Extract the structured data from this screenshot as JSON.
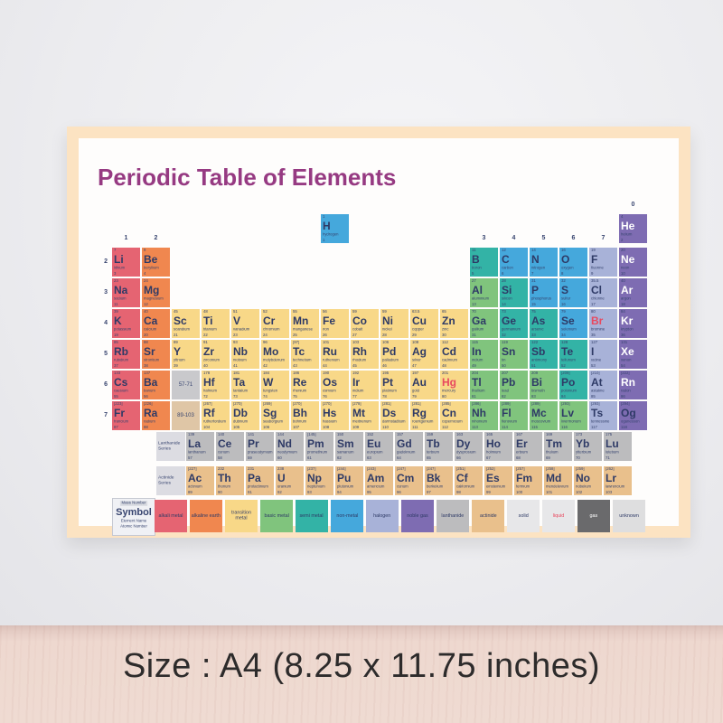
{
  "poster": {
    "title": "Periodic Table of Elements",
    "caption": "Size : A4 (8.25 x 11.75 inches)"
  },
  "colors": {
    "alkali": "#e56472",
    "alkaline": "#f0874f",
    "transition": "#f8d888",
    "basic": "#80c47d",
    "semi": "#33b3a6",
    "nonmetal": "#45a8dc",
    "halogen": "#a8b2d8",
    "noble": "#7e6cb2",
    "lanthanide": "#bcbcbe",
    "actinide": "#e9c08c",
    "solid": "#e7e7e9",
    "liquid": "#e7e7e9",
    "gas": "#6a6a6c",
    "unknown": "#dededf",
    "placeholder_lan": "#c9c9cc",
    "placeholder_act": "#dfc6a6",
    "text_navy": "#2e3a66",
    "text_red": "#e8495f",
    "text_white": "#ffffff",
    "title_purple": "#963a82",
    "poster_border": "#fce3c2"
  },
  "table": {
    "group_headers": [
      {
        "label": "1",
        "col": 1
      },
      {
        "label": "2",
        "col": 2
      },
      {
        "label": "3",
        "col": 13
      },
      {
        "label": "4",
        "col": 14
      },
      {
        "label": "5",
        "col": 15
      },
      {
        "label": "6",
        "col": 16
      },
      {
        "label": "7",
        "col": 17
      },
      {
        "label": "0",
        "col": 18
      }
    ],
    "period_labels": [
      {
        "label": "2",
        "row": 2
      },
      {
        "label": "3",
        "row": 3
      },
      {
        "label": "4",
        "row": 4
      },
      {
        "label": "5",
        "row": 5
      },
      {
        "label": "6",
        "row": 6
      },
      {
        "label": "7",
        "row": 7
      }
    ],
    "placeholders": [
      {
        "label": "57-71",
        "row": 6,
        "col": 3,
        "color_key": "placeholder_lan"
      },
      {
        "label": "89-103",
        "row": 7,
        "col": 3,
        "color_key": "placeholder_act"
      }
    ],
    "series_labels": [
      {
        "label": "Lanthanide Series",
        "series": "lan"
      },
      {
        "label": "Actinide Series",
        "series": "act"
      }
    ],
    "element_fields": [
      "symbol",
      "name",
      "mass",
      "number",
      "period",
      "col",
      "category",
      "state"
    ],
    "elements": [
      [
        "H",
        "hydrogen",
        "1",
        1,
        1,
        8,
        "nonmetal",
        ""
      ],
      [
        "He",
        "helium",
        "4",
        2,
        1,
        18,
        "noble",
        "gas"
      ],
      [
        "Li",
        "lithium",
        "7",
        3,
        2,
        1,
        "alkali",
        ""
      ],
      [
        "Be",
        "beryllium",
        "9",
        4,
        2,
        2,
        "alkaline",
        ""
      ],
      [
        "B",
        "boron",
        "11",
        5,
        2,
        13,
        "semi",
        ""
      ],
      [
        "C",
        "carbon",
        "12",
        6,
        2,
        14,
        "nonmetal",
        ""
      ],
      [
        "N",
        "nitrogen",
        "14",
        7,
        2,
        15,
        "nonmetal",
        ""
      ],
      [
        "O",
        "oxygen",
        "16",
        8,
        2,
        16,
        "nonmetal",
        ""
      ],
      [
        "F",
        "fluorine",
        "19",
        9,
        2,
        17,
        "halogen",
        ""
      ],
      [
        "Ne",
        "neon",
        "20",
        10,
        2,
        18,
        "noble",
        "gas"
      ],
      [
        "Na",
        "sodium",
        "23",
        11,
        3,
        1,
        "alkali",
        ""
      ],
      [
        "Mg",
        "magnesium",
        "24",
        12,
        3,
        2,
        "alkaline",
        ""
      ],
      [
        "Al",
        "aluminium",
        "27",
        13,
        3,
        13,
        "basic",
        ""
      ],
      [
        "Si",
        "silicon",
        "28",
        14,
        3,
        14,
        "semi",
        ""
      ],
      [
        "P",
        "phosphorus",
        "31",
        15,
        3,
        15,
        "nonmetal",
        ""
      ],
      [
        "S",
        "sulfur",
        "32",
        16,
        3,
        16,
        "nonmetal",
        ""
      ],
      [
        "Cl",
        "chlorine",
        "35.5",
        17,
        3,
        17,
        "halogen",
        ""
      ],
      [
        "Ar",
        "argon",
        "40",
        18,
        3,
        18,
        "noble",
        "gas"
      ],
      [
        "K",
        "potassium",
        "39",
        19,
        4,
        1,
        "alkali",
        ""
      ],
      [
        "Ca",
        "calcium",
        "40",
        20,
        4,
        2,
        "alkaline",
        ""
      ],
      [
        "Sc",
        "scandium",
        "45",
        21,
        4,
        3,
        "transition",
        ""
      ],
      [
        "Ti",
        "titanium",
        "48",
        22,
        4,
        4,
        "transition",
        ""
      ],
      [
        "V",
        "vanadium",
        "51",
        23,
        4,
        5,
        "transition",
        ""
      ],
      [
        "Cr",
        "chromium",
        "52",
        24,
        4,
        6,
        "transition",
        ""
      ],
      [
        "Mn",
        "manganese",
        "55",
        25,
        4,
        7,
        "transition",
        ""
      ],
      [
        "Fe",
        "iron",
        "56",
        26,
        4,
        8,
        "transition",
        ""
      ],
      [
        "Co",
        "cobalt",
        "59",
        27,
        4,
        9,
        "transition",
        ""
      ],
      [
        "Ni",
        "nickel",
        "59",
        28,
        4,
        10,
        "transition",
        ""
      ],
      [
        "Cu",
        "copper",
        "63.5",
        29,
        4,
        11,
        "transition",
        ""
      ],
      [
        "Zn",
        "zinc",
        "65",
        30,
        4,
        12,
        "transition",
        ""
      ],
      [
        "Ga",
        "gallium",
        "70",
        31,
        4,
        13,
        "basic",
        ""
      ],
      [
        "Ge",
        "germanium",
        "73",
        32,
        4,
        14,
        "semi",
        ""
      ],
      [
        "As",
        "arsenic",
        "75",
        33,
        4,
        15,
        "semi",
        ""
      ],
      [
        "Se",
        "selenium",
        "79",
        34,
        4,
        16,
        "nonmetal",
        ""
      ],
      [
        "Br",
        "bromine",
        "80",
        35,
        4,
        17,
        "halogen",
        "liquid"
      ],
      [
        "Kr",
        "krypton",
        "84",
        36,
        4,
        18,
        "noble",
        "gas"
      ],
      [
        "Rb",
        "rubidium",
        "85",
        37,
        5,
        1,
        "alkali",
        ""
      ],
      [
        "Sr",
        "strontium",
        "88",
        38,
        5,
        2,
        "alkaline",
        ""
      ],
      [
        "Y",
        "yttrium",
        "89",
        39,
        5,
        3,
        "transition",
        ""
      ],
      [
        "Zr",
        "zirconium",
        "91",
        40,
        5,
        4,
        "transition",
        ""
      ],
      [
        "Nb",
        "niobium",
        "93",
        41,
        5,
        5,
        "transition",
        ""
      ],
      [
        "Mo",
        "molybdenum",
        "96",
        42,
        5,
        6,
        "transition",
        ""
      ],
      [
        "Tc",
        "technetium",
        "[97]",
        43,
        5,
        7,
        "transition",
        ""
      ],
      [
        "Ru",
        "ruthenium",
        "101",
        44,
        5,
        8,
        "transition",
        ""
      ],
      [
        "Rh",
        "rhodium",
        "103",
        45,
        5,
        9,
        "transition",
        ""
      ],
      [
        "Pd",
        "palladium",
        "106",
        46,
        5,
        10,
        "transition",
        ""
      ],
      [
        "Ag",
        "silver",
        "108",
        47,
        5,
        11,
        "transition",
        ""
      ],
      [
        "Cd",
        "cadmium",
        "112",
        48,
        5,
        12,
        "transition",
        ""
      ],
      [
        "In",
        "indium",
        "115",
        49,
        5,
        13,
        "basic",
        ""
      ],
      [
        "Sn",
        "tin",
        "119",
        50,
        5,
        14,
        "basic",
        ""
      ],
      [
        "Sb",
        "antimony",
        "122",
        51,
        5,
        15,
        "semi",
        ""
      ],
      [
        "Te",
        "tellurium",
        "128",
        52,
        5,
        16,
        "semi",
        ""
      ],
      [
        "I",
        "iodine",
        "127",
        53,
        5,
        17,
        "halogen",
        ""
      ],
      [
        "Xe",
        "xenon",
        "131",
        54,
        5,
        18,
        "noble",
        "gas"
      ],
      [
        "Cs",
        "caesium",
        "133",
        55,
        6,
        1,
        "alkali",
        ""
      ],
      [
        "Ba",
        "barium",
        "137",
        56,
        6,
        2,
        "alkaline",
        ""
      ],
      [
        "Hf",
        "hafnium",
        "178",
        72,
        6,
        4,
        "transition",
        ""
      ],
      [
        "Ta",
        "tantalum",
        "181",
        73,
        6,
        5,
        "transition",
        ""
      ],
      [
        "W",
        "tungsten",
        "184",
        74,
        6,
        6,
        "transition",
        ""
      ],
      [
        "Re",
        "rhenium",
        "186",
        75,
        6,
        7,
        "transition",
        ""
      ],
      [
        "Os",
        "osmium",
        "190",
        76,
        6,
        8,
        "transition",
        ""
      ],
      [
        "Ir",
        "iridium",
        "192",
        77,
        6,
        9,
        "transition",
        ""
      ],
      [
        "Pt",
        "platinum",
        "195",
        78,
        6,
        10,
        "transition",
        ""
      ],
      [
        "Au",
        "gold",
        "197",
        79,
        6,
        11,
        "transition",
        ""
      ],
      [
        "Hg",
        "mercury",
        "201",
        80,
        6,
        12,
        "transition",
        "liquid"
      ],
      [
        "Tl",
        "thallium",
        "204",
        81,
        6,
        13,
        "basic",
        ""
      ],
      [
        "Pb",
        "lead",
        "207",
        82,
        6,
        14,
        "basic",
        ""
      ],
      [
        "Bi",
        "bismuth",
        "209",
        83,
        6,
        15,
        "basic",
        ""
      ],
      [
        "Po",
        "polonium",
        "[209]",
        84,
        6,
        16,
        "semi",
        ""
      ],
      [
        "At",
        "astatine",
        "[210]",
        85,
        6,
        17,
        "halogen",
        ""
      ],
      [
        "Rn",
        "radon",
        "[222]",
        86,
        6,
        18,
        "noble",
        "gas"
      ],
      [
        "Fr",
        "francium",
        "[223]",
        87,
        7,
        1,
        "alkali",
        ""
      ],
      [
        "Ra",
        "radium",
        "[226]",
        88,
        7,
        2,
        "alkaline",
        ""
      ],
      [
        "Rf",
        "rutherfordium",
        "[267]",
        104,
        7,
        4,
        "transition",
        ""
      ],
      [
        "Db",
        "dubnium",
        "[270]",
        105,
        7,
        5,
        "transition",
        ""
      ],
      [
        "Sg",
        "seaborgium",
        "[269]",
        106,
        7,
        6,
        "transition",
        ""
      ],
      [
        "Bh",
        "bohrium",
        "[270]",
        107,
        7,
        7,
        "transition",
        ""
      ],
      [
        "Hs",
        "hassium",
        "[270]",
        108,
        7,
        8,
        "transition",
        ""
      ],
      [
        "Mt",
        "meitnerium",
        "[278]",
        109,
        7,
        9,
        "transition",
        ""
      ],
      [
        "Ds",
        "darmstadtium",
        "[281]",
        110,
        7,
        10,
        "transition",
        ""
      ],
      [
        "Rg",
        "roentgenium",
        "[281]",
        111,
        7,
        11,
        "transition",
        ""
      ],
      [
        "Cn",
        "copernicium",
        "[285]",
        112,
        7,
        12,
        "transition",
        ""
      ],
      [
        "Nh",
        "nihonium",
        "[286]",
        113,
        7,
        13,
        "basic",
        ""
      ],
      [
        "Fl",
        "flerovium",
        "[289]",
        114,
        7,
        14,
        "basic",
        ""
      ],
      [
        "Mc",
        "moscovium",
        "[289]",
        115,
        7,
        15,
        "basic",
        ""
      ],
      [
        "Lv",
        "livermorium",
        "[293]",
        116,
        7,
        16,
        "basic",
        ""
      ],
      [
        "Ts",
        "tennessine",
        "[293]",
        117,
        7,
        17,
        "halogen",
        ""
      ],
      [
        "Og",
        "oganesson",
        "[294]",
        118,
        7,
        18,
        "noble",
        ""
      ]
    ],
    "lanthanides": [
      [
        "La",
        "lanthanum",
        "139",
        57
      ],
      [
        "Ce",
        "cerium",
        "140",
        58
      ],
      [
        "Pr",
        "praseodymium",
        "141",
        59
      ],
      [
        "Nd",
        "neodymium",
        "144",
        60
      ],
      [
        "Pm",
        "promethium",
        "[145]",
        61
      ],
      [
        "Sm",
        "samarium",
        "150",
        62
      ],
      [
        "Eu",
        "europium",
        "152",
        63
      ],
      [
        "Gd",
        "gadolinium",
        "157",
        64
      ],
      [
        "Tb",
        "terbium",
        "159",
        65
      ],
      [
        "Dy",
        "dysprosium",
        "163",
        66
      ],
      [
        "Ho",
        "holmium",
        "165",
        67
      ],
      [
        "Er",
        "erbium",
        "167",
        68
      ],
      [
        "Tm",
        "thulium",
        "169",
        69
      ],
      [
        "Yb",
        "ytterbium",
        "173",
        70
      ],
      [
        "Lu",
        "lutetium",
        "175",
        71
      ]
    ],
    "actinides": [
      [
        "Ac",
        "actinium",
        "[227]",
        89
      ],
      [
        "Th",
        "thorium",
        "232",
        90
      ],
      [
        "Pa",
        "protactinium",
        "231",
        91
      ],
      [
        "U",
        "uranium",
        "238",
        92
      ],
      [
        "Np",
        "neptunium",
        "[237]",
        93
      ],
      [
        "Pu",
        "plutonium",
        "[244]",
        94
      ],
      [
        "Am",
        "americium",
        "[243]",
        95
      ],
      [
        "Cm",
        "curium",
        "[247]",
        96
      ],
      [
        "Bk",
        "berkelium",
        "[247]",
        97
      ],
      [
        "Cf",
        "californium",
        "[251]",
        98
      ],
      [
        "Es",
        "einsteinium",
        "[252]",
        99
      ],
      [
        "Fm",
        "fermium",
        "[257]",
        100
      ],
      [
        "Md",
        "mendelevium",
        "[258]",
        101
      ],
      [
        "No",
        "nobelium",
        "[259]",
        102
      ],
      [
        "Lr",
        "lawrencium",
        "[262]",
        103
      ]
    ]
  },
  "legend": {
    "key": {
      "mass": "Mass Number",
      "symbol": "Symbol",
      "name": "Element Name",
      "number": "Atomic Number"
    },
    "items": [
      {
        "label": "alkali metal",
        "key": "alkali",
        "text": "navy"
      },
      {
        "label": "alkaline earth",
        "key": "alkaline",
        "text": "navy"
      },
      {
        "label": "transition metal",
        "key": "transition",
        "text": "navy"
      },
      {
        "label": "basic metal",
        "key": "basic",
        "text": "navy"
      },
      {
        "label": "semi metal",
        "key": "semi",
        "text": "navy"
      },
      {
        "label": "non-metal",
        "key": "nonmetal",
        "text": "navy"
      },
      {
        "label": "halogen",
        "key": "halogen",
        "text": "navy"
      },
      {
        "label": "noble gas",
        "key": "noble",
        "text": "navy"
      },
      {
        "label": "lanthanide",
        "key": "lanthanide",
        "text": "navy"
      },
      {
        "label": "actinide",
        "key": "actinide",
        "text": "navy"
      },
      {
        "label": "solid",
        "key": "solid",
        "text": "navy"
      },
      {
        "label": "liquid",
        "key": "liquid",
        "text": "red"
      },
      {
        "label": "gas",
        "key": "gas",
        "text": "white"
      },
      {
        "label": "unknown",
        "key": "unknown",
        "text": "navy"
      }
    ]
  }
}
